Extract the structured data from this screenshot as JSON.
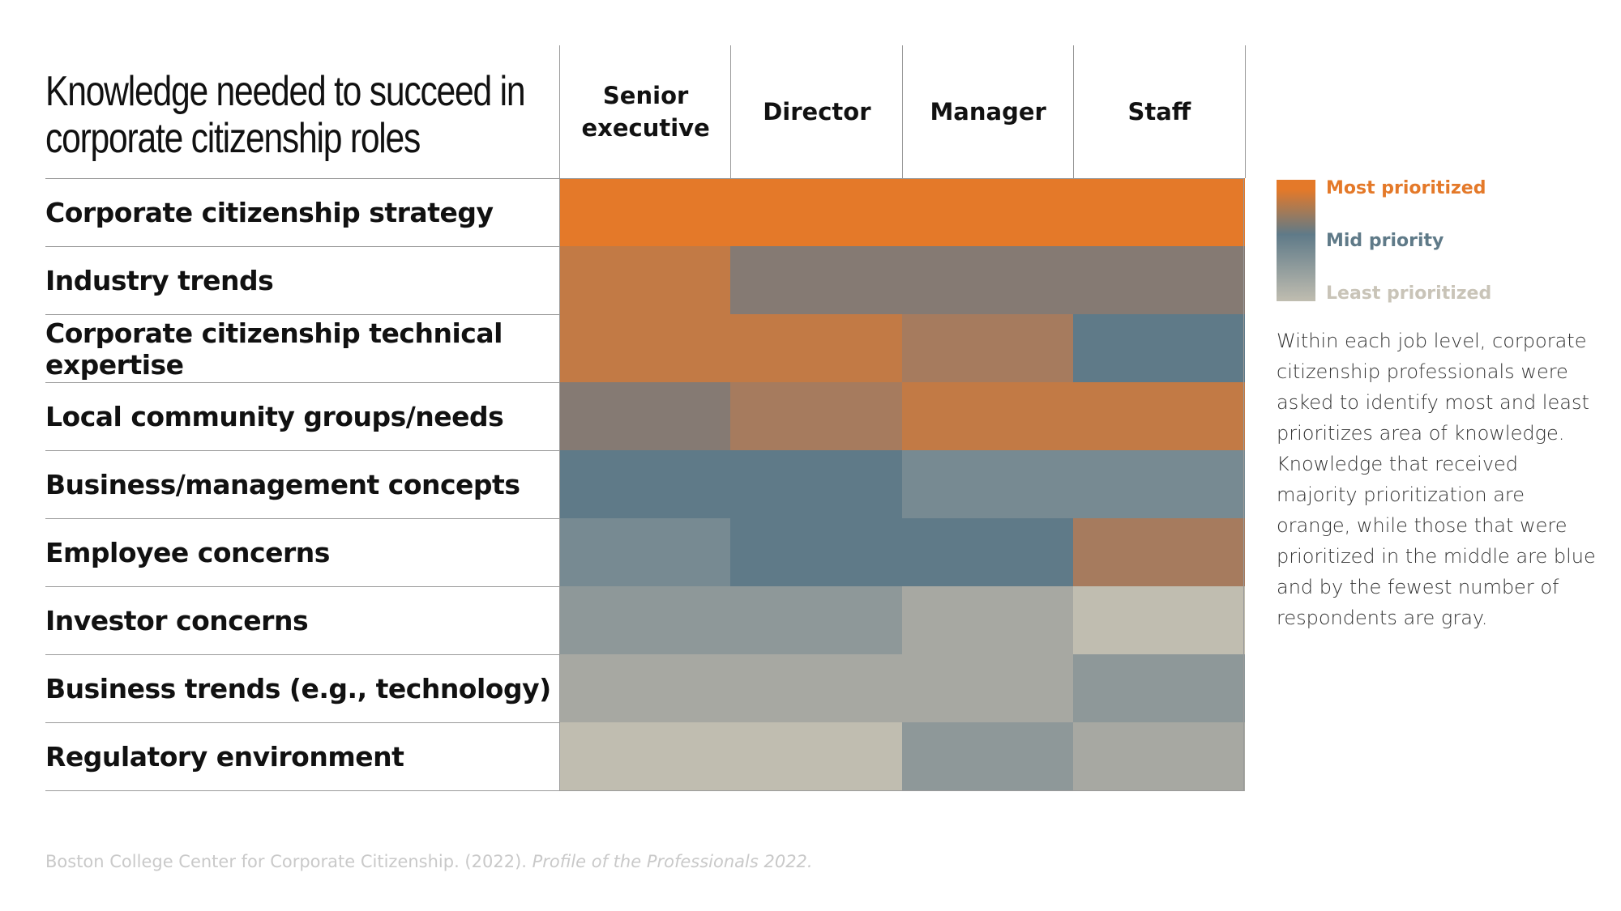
{
  "chart_data": {
    "type": "heatmap",
    "title_lines": [
      "Knowledge needed to succeed in",
      "corporate citizenship roles"
    ],
    "columns": [
      {
        "lines": [
          "Senior",
          "executive"
        ]
      },
      {
        "lines": [
          "Director"
        ]
      },
      {
        "lines": [
          "Manager"
        ]
      },
      {
        "lines": [
          "Staff"
        ]
      }
    ],
    "rows": [
      "Corporate citizenship strategy",
      "Industry trends",
      "Corporate citizenship technical expertise",
      "Local community groups/needs",
      "Business/management concepts",
      "Employee concerns",
      "Investor concerns",
      "Business trends (e.g., technology)",
      "Regulatory environment"
    ],
    "priority_scale": {
      "most": "Most prioritized",
      "mid": "Mid priority",
      "least": "Least prioritized"
    },
    "cell_colors": [
      [
        "#e47929",
        "#e47929",
        "#e47929",
        "#e47929"
      ],
      [
        "#c27a45",
        "#857a73",
        "#857a73",
        "#857a73"
      ],
      [
        "#c27a45",
        "#c27a45",
        "#a67b5e",
        "#5f7a88"
      ],
      [
        "#857a73",
        "#a67b5e",
        "#c27a45",
        "#c27a45"
      ],
      [
        "#5f7a88",
        "#5f7a88",
        "#778a92",
        "#778a92"
      ],
      [
        "#778a92",
        "#5f7a88",
        "#5f7a88",
        "#a67b5e"
      ],
      [
        "#8e9899",
        "#8e9899",
        "#a7a8a2",
        "#c0bdb0"
      ],
      [
        "#a7a8a2",
        "#a7a8a2",
        "#a7a8a2",
        "#8e9899"
      ],
      [
        "#c0bdb0",
        "#c0bdb0",
        "#8e9899",
        "#a7a8a2"
      ]
    ]
  },
  "legend": {
    "colors": {
      "most": "#e47929",
      "mid": "#5f7a88",
      "least": "#c0bdb0"
    },
    "label_colors": {
      "most": "#e47929",
      "mid": "#5f7a88",
      "least": "#c9c4b8"
    }
  },
  "note": "Within each job level, corporate citizenship professionals were asked to identify most and least prioritizes area of knowledge. Knowledge that received majority prioritization are orange, while those that were prioritized in the middle are blue and by the fewest number of respondents are gray.",
  "source": {
    "text": "Boston College Center for Corporate Citizenship. (2022). ",
    "italic": "Profile of the Professionals 2022."
  }
}
